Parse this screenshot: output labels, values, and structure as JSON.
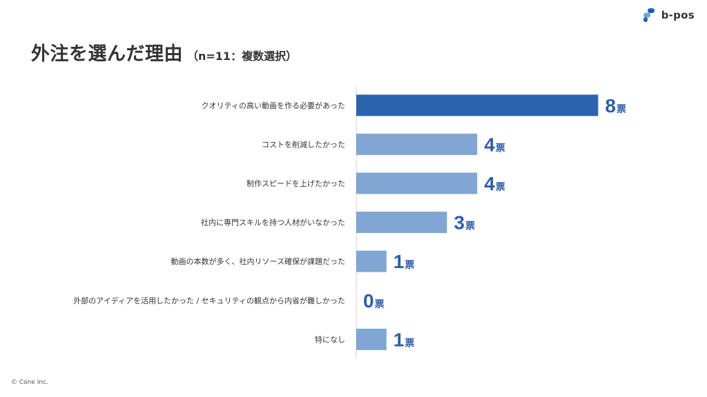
{
  "header": {
    "brand": "b-pos",
    "brand_icon": "b-pos-logo-icon",
    "brand_colors": [
      "#1e5fb0",
      "#6aa3d8"
    ]
  },
  "title": {
    "main": "外注を選んだ理由",
    "sub": "（n=11：複数選択）"
  },
  "footer": {
    "copyright": "© Cone Inc."
  },
  "chart_data": {
    "type": "bar",
    "orientation": "horizontal",
    "title": "外注を選んだ理由",
    "categories": [
      "クオリティの高い動画を作る必要があった",
      "コストを削減したかった",
      "制作スピードを上げたかった",
      "社内に専門スキルを持つ人材がいなかった",
      "動画の本数が多く、社内リソース確保が課題だった",
      "外部のアイディアを活用したかった / セキュリティの観点から内省が難しかった",
      "特になし"
    ],
    "values": [
      8,
      4,
      4,
      3,
      1,
      0,
      1
    ],
    "value_unit": "票",
    "xlim": [
      0,
      8
    ],
    "colors": {
      "highlight": "#2b63b1",
      "bar": "#80a6d3",
      "value_text": "#2f5ea8",
      "axis": "#d0d0d0"
    },
    "grid": false,
    "legend": "none"
  }
}
